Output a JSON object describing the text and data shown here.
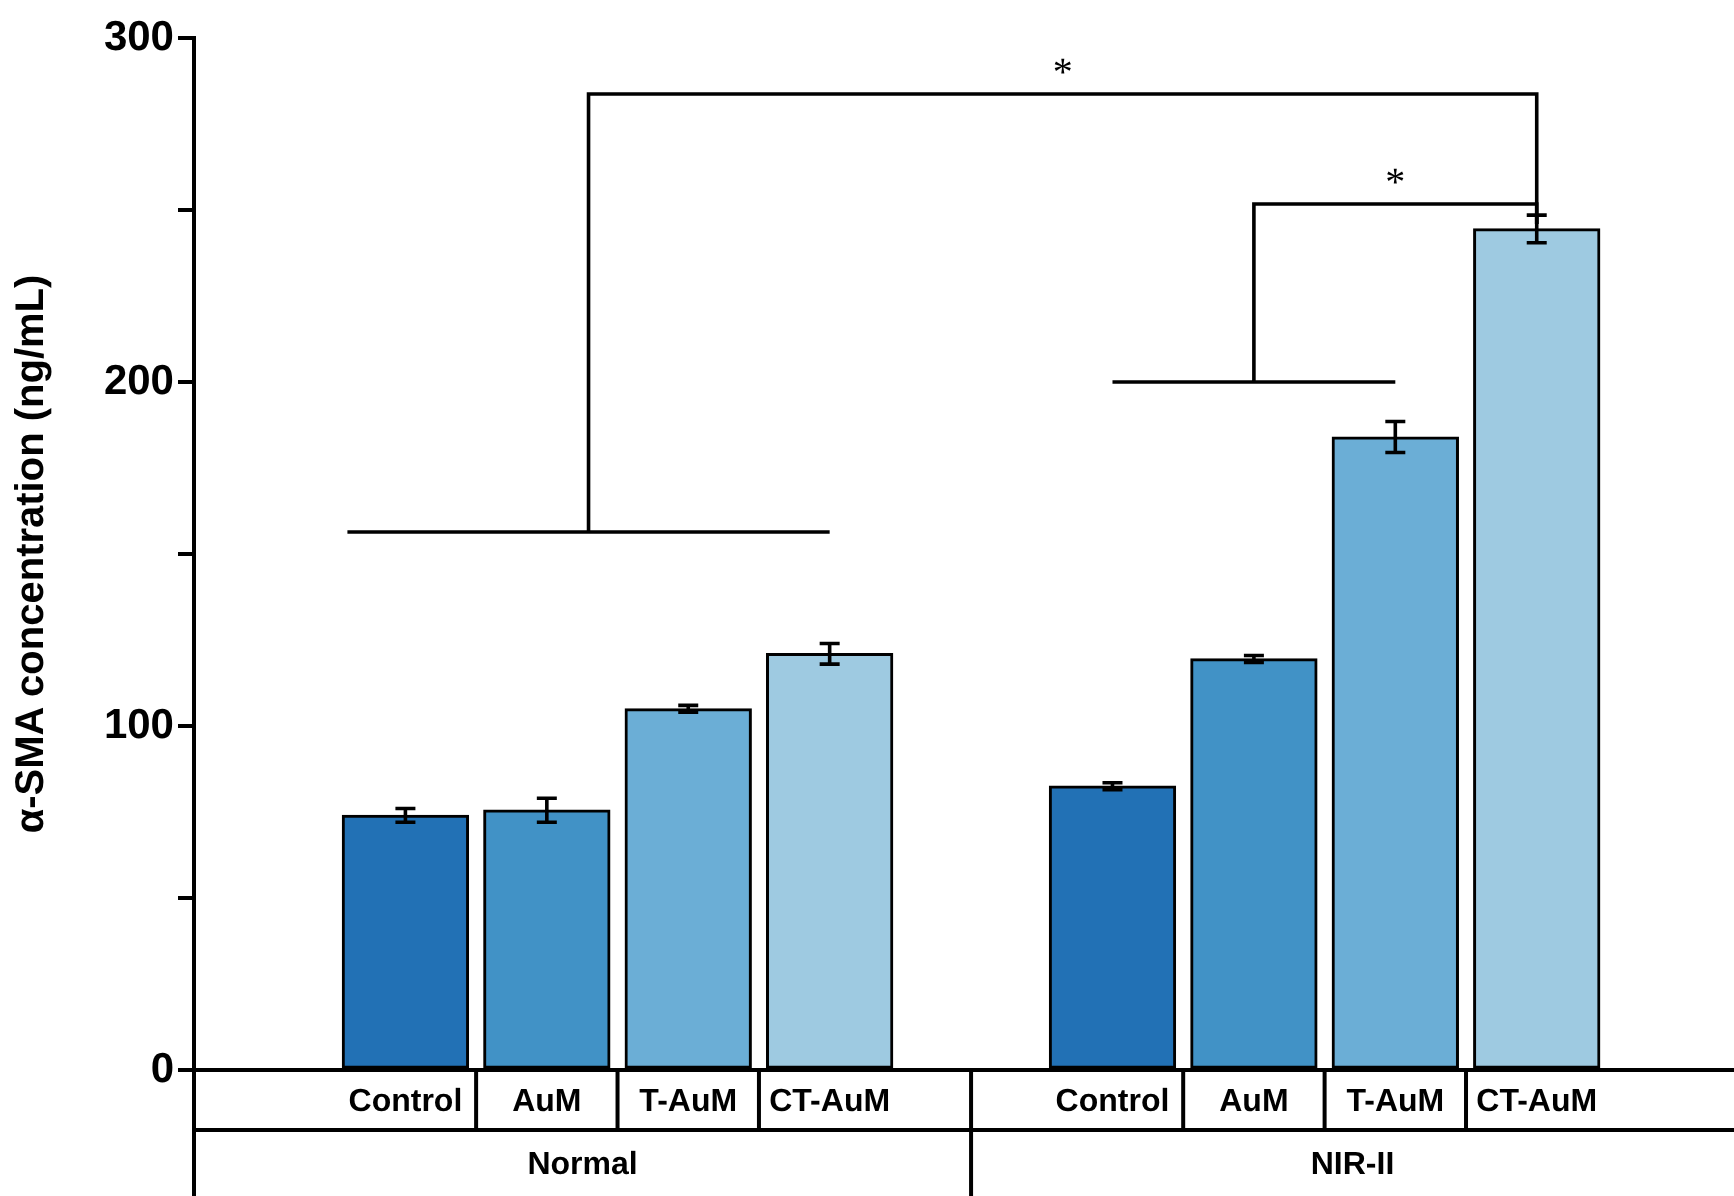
{
  "chart_data": {
    "type": "bar",
    "ylabel": "α-SMA concentration (ng/mL)",
    "categories": [
      "Control",
      "AuM",
      "T-AuM",
      "CT-AuM",
      "Control",
      "AuM",
      "T-AuM",
      "CT-AuM"
    ],
    "values": [
      74,
      75.5,
      105,
      121,
      82.5,
      119.5,
      184,
      244.5
    ],
    "errors": [
      2,
      3.5,
      1,
      3,
      1,
      1,
      4.5,
      4
    ],
    "colors": [
      "#2271b5",
      "#4192c6",
      "#6baed6",
      "#9ecae1",
      "#2271b5",
      "#4192c6",
      "#6baed6",
      "#9ecae1"
    ],
    "ylim": [
      0,
      300
    ],
    "yticks": [
      0,
      {
        "value": 50,
        "label": null
      },
      100,
      {
        "value": 150,
        "label": null
      },
      200,
      {
        "value": 250,
        "label": null
      },
      300
    ],
    "annotations": [
      "Normal",
      "NIR-II",
      "*",
      "*"
    ],
    "grid": false,
    "legend": false
  }
}
